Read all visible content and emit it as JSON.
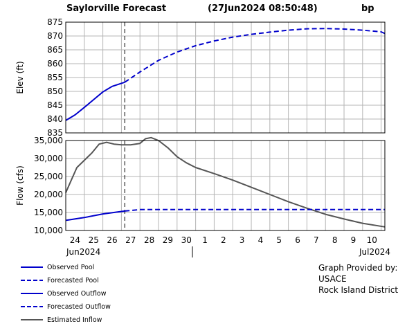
{
  "header": {
    "project": "Saylorville  Forecast",
    "timestamp": "(27Jun2024  08:50:48)",
    "initials": "bp"
  },
  "credit": {
    "line1": "Graph Provided by:",
    "line2": "USACE",
    "line3": "Rock Island District"
  },
  "legend": [
    {
      "label": "Observed Pool",
      "color": "#0000cc",
      "dash": false
    },
    {
      "label": "Forecasted Pool",
      "color": "#0000cc",
      "dash": true
    },
    {
      "label": "Observed Outflow",
      "color": "#0000cc",
      "dash": false
    },
    {
      "label": "Forecasted Outflow",
      "color": "#0000cc",
      "dash": true
    },
    {
      "label": "Estimated Inflow",
      "color": "#555555",
      "dash": false
    }
  ],
  "xaxis": {
    "day_labels": [
      "24",
      "25",
      "26",
      "27",
      "28",
      "29",
      "30",
      "1",
      "2",
      "3",
      "4",
      "5",
      "6",
      "7",
      "8",
      "9",
      "10"
    ],
    "month_left": "Jun2024",
    "month_right": "Jul2024"
  },
  "chart_data": [
    {
      "type": "line",
      "ylabel": "Elev (ft)",
      "ylim": [
        835,
        875
      ],
      "yticks": [
        "875",
        "870",
        "865",
        "860",
        "855",
        "850",
        "845",
        "840",
        "835"
      ],
      "xlim": [
        0,
        17.2
      ],
      "forecast_start": 3.18,
      "grid": true,
      "series": [
        {
          "name": "Observed Pool",
          "color": "#0000cc",
          "dash": false,
          "x": [
            0,
            0.5,
            1,
            1.5,
            2,
            2.5,
            3.18
          ],
          "y": [
            839.5,
            841.5,
            844.2,
            847.0,
            849.8,
            851.8,
            853.3
          ]
        },
        {
          "name": "Forecasted Pool",
          "color": "#0000cc",
          "dash": true,
          "x": [
            3.18,
            4,
            5,
            6,
            7,
            8,
            9,
            10,
            11,
            12,
            13,
            14,
            15,
            16,
            17,
            17.2
          ],
          "y": [
            853.3,
            857.0,
            861.2,
            864.2,
            866.5,
            868.2,
            869.6,
            870.6,
            871.4,
            872.1,
            872.6,
            872.7,
            872.5,
            872.1,
            871.5,
            870.9
          ]
        }
      ]
    },
    {
      "type": "line",
      "ylabel": "Flow (cfs)",
      "ylim": [
        10000,
        35000
      ],
      "yticks": [
        "35,000",
        "30,000",
        "25,000",
        "20,000",
        "15,000",
        "10,000"
      ],
      "xlim": [
        0,
        17.2
      ],
      "forecast_start": 3.18,
      "grid": true,
      "series": [
        {
          "name": "Estimated Inflow",
          "color": "#555555",
          "dash": false,
          "x": [
            0,
            0.3,
            0.6,
            1.0,
            1.4,
            1.8,
            2.2,
            2.6,
            3.0,
            3.18,
            3.5,
            4.0,
            4.3,
            4.6,
            5.0,
            5.5,
            6.0,
            6.5,
            7.0,
            8.0,
            9.0,
            10.0,
            11.0,
            12.0,
            13.0,
            14.0,
            15.0,
            16.0,
            17.2
          ],
          "y": [
            20500,
            24000,
            27500,
            29500,
            31500,
            34000,
            34500,
            34000,
            33800,
            33800,
            33800,
            34200,
            35500,
            35800,
            35000,
            33000,
            30500,
            28800,
            27500,
            25800,
            24000,
            22000,
            20000,
            18000,
            16200,
            14500,
            13200,
            12000,
            11000
          ]
        },
        {
          "name": "Observed Outflow",
          "color": "#0000cc",
          "dash": false,
          "x": [
            0,
            1.0,
            2.0,
            3.18
          ],
          "y": [
            12800,
            13600,
            14600,
            15400
          ]
        },
        {
          "name": "Forecasted Outflow",
          "color": "#0000cc",
          "dash": true,
          "x": [
            3.18,
            4.0,
            17.2
          ],
          "y": [
            15400,
            15800,
            15800
          ]
        }
      ]
    }
  ]
}
